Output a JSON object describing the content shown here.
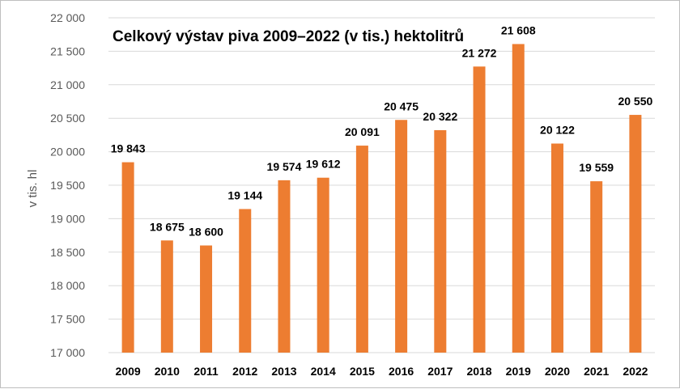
{
  "chart_data": {
    "type": "bar",
    "title": "Celkový výstav piva 2009–2022 (v tis.) hektolitrů",
    "xlabel": "",
    "ylabel": "v tis. hl",
    "ylim": [
      17000,
      22000
    ],
    "ytick_step": 500,
    "yticks": [
      "17 000",
      "17 500",
      "18 000",
      "18 500",
      "19 000",
      "19 500",
      "20 000",
      "20 500",
      "21 000",
      "21 500",
      "22 000"
    ],
    "categories": [
      "2009",
      "2010",
      "2011",
      "2012",
      "2013",
      "2014",
      "2015",
      "2016",
      "2017",
      "2018",
      "2019",
      "2020",
      "2021",
      "2022"
    ],
    "values": [
      19843,
      18675,
      18600,
      19144,
      19574,
      19612,
      20091,
      20475,
      20322,
      21272,
      21608,
      20122,
      19559,
      20550
    ],
    "data_labels": [
      "19 843",
      "18 675",
      "18 600",
      "19 144",
      "19 574",
      "19 612",
      "20 091",
      "20 475",
      "20 322",
      "21 272",
      "21 608",
      "20 122",
      "19 559",
      "20 550"
    ],
    "grid": true,
    "legend": "none",
    "bar_color": "#ED7D31"
  }
}
